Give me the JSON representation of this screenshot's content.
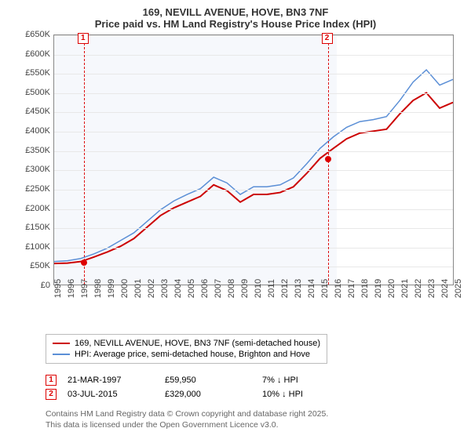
{
  "title": {
    "line1": "169, NEVILL AVENUE, HOVE, BN3 7NF",
    "line2": "Price paid vs. HM Land Registry's House Price Index (HPI)"
  },
  "chart": {
    "type": "line",
    "background_color": "#ffffff",
    "grid_color": "#e8e8e8",
    "axis_color": "#888888",
    "y": {
      "min": 0,
      "max": 650000,
      "step": 50000,
      "ticks": [
        "£0",
        "£50K",
        "£100K",
        "£150K",
        "£200K",
        "£250K",
        "£300K",
        "£350K",
        "£400K",
        "£450K",
        "£500K",
        "£550K",
        "£600K",
        "£650K"
      ]
    },
    "x": {
      "min": 1995,
      "max": 2025,
      "ticks": [
        1995,
        1996,
        1997,
        1998,
        1999,
        2000,
        2001,
        2002,
        2003,
        2004,
        2005,
        2006,
        2007,
        2008,
        2009,
        2010,
        2011,
        2012,
        2013,
        2014,
        2015,
        2016,
        2017,
        2018,
        2019,
        2020,
        2021,
        2022,
        2023,
        2024,
        2025
      ]
    },
    "shade": {
      "from": 1995,
      "to": 2016.2,
      "color": "#eef3f9"
    },
    "series": [
      {
        "id": "price_paid",
        "label": "169, NEVILL AVENUE, HOVE, BN3 7NF (semi-detached house)",
        "color": "#cc0000",
        "width": 2,
        "points": [
          [
            1995,
            55000
          ],
          [
            1996,
            56000
          ],
          [
            1997,
            60000
          ],
          [
            1998,
            72000
          ],
          [
            1999,
            85000
          ],
          [
            2000,
            100000
          ],
          [
            2001,
            120000
          ],
          [
            2002,
            150000
          ],
          [
            2003,
            180000
          ],
          [
            2004,
            200000
          ],
          [
            2005,
            215000
          ],
          [
            2006,
            230000
          ],
          [
            2007,
            260000
          ],
          [
            2008,
            245000
          ],
          [
            2009,
            215000
          ],
          [
            2010,
            235000
          ],
          [
            2011,
            235000
          ],
          [
            2012,
            240000
          ],
          [
            2013,
            255000
          ],
          [
            2014,
            290000
          ],
          [
            2015,
            329000
          ],
          [
            2016,
            355000
          ],
          [
            2017,
            380000
          ],
          [
            2018,
            395000
          ],
          [
            2019,
            400000
          ],
          [
            2020,
            405000
          ],
          [
            2021,
            445000
          ],
          [
            2022,
            480000
          ],
          [
            2023,
            500000
          ],
          [
            2024,
            460000
          ],
          [
            2025,
            475000
          ]
        ]
      },
      {
        "id": "hpi",
        "label": "HPI: Average price, semi-detached house, Brighton and Hove",
        "color": "#5b8fd6",
        "width": 1.5,
        "points": [
          [
            1995,
            60000
          ],
          [
            1996,
            62000
          ],
          [
            1997,
            68000
          ],
          [
            1998,
            80000
          ],
          [
            1999,
            95000
          ],
          [
            2000,
            115000
          ],
          [
            2001,
            135000
          ],
          [
            2002,
            165000
          ],
          [
            2003,
            195000
          ],
          [
            2004,
            218000
          ],
          [
            2005,
            235000
          ],
          [
            2006,
            250000
          ],
          [
            2007,
            280000
          ],
          [
            2008,
            265000
          ],
          [
            2009,
            235000
          ],
          [
            2010,
            255000
          ],
          [
            2011,
            255000
          ],
          [
            2012,
            260000
          ],
          [
            2013,
            278000
          ],
          [
            2014,
            315000
          ],
          [
            2015,
            355000
          ],
          [
            2016,
            385000
          ],
          [
            2017,
            410000
          ],
          [
            2018,
            425000
          ],
          [
            2019,
            430000
          ],
          [
            2020,
            438000
          ],
          [
            2021,
            480000
          ],
          [
            2022,
            528000
          ],
          [
            2023,
            560000
          ],
          [
            2024,
            520000
          ],
          [
            2025,
            535000
          ]
        ]
      }
    ],
    "markers": [
      {
        "n": "1",
        "year": 1997.22,
        "value": 59950
      },
      {
        "n": "2",
        "year": 2015.5,
        "value": 329000
      }
    ]
  },
  "legend": {
    "items": [
      {
        "color": "#cc0000",
        "label": "169, NEVILL AVENUE, HOVE, BN3 7NF (semi-detached house)"
      },
      {
        "color": "#5b8fd6",
        "label": "HPI: Average price, semi-detached house, Brighton and Hove"
      }
    ]
  },
  "sales": [
    {
      "n": "1",
      "date": "21-MAR-1997",
      "price": "£59,950",
      "delta": "7% ↓ HPI"
    },
    {
      "n": "2",
      "date": "03-JUL-2015",
      "price": "£329,000",
      "delta": "10% ↓ HPI"
    }
  ],
  "copyright": {
    "line1": "Contains HM Land Registry data © Crown copyright and database right 2025.",
    "line2": "This data is licensed under the Open Government Licence v3.0."
  }
}
